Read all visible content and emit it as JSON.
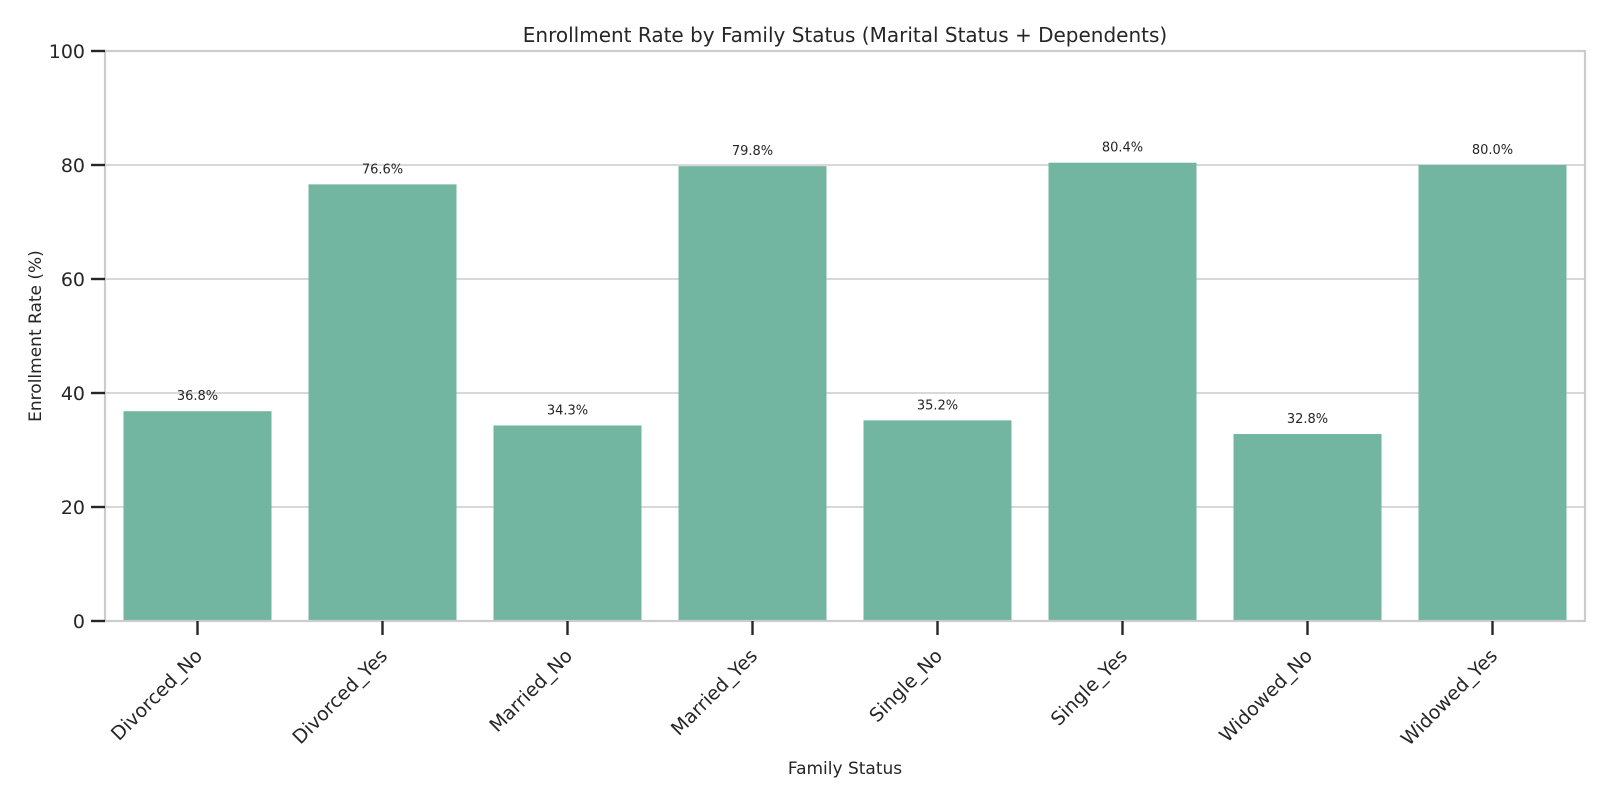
{
  "chart_data": {
    "type": "bar",
    "title": "Enrollment Rate by Family Status (Marital Status + Dependents)",
    "xlabel": "Family Status",
    "ylabel": "Enrollment Rate (%)",
    "categories": [
      "Divorced_No",
      "Divorced_Yes",
      "Married_No",
      "Married_Yes",
      "Single_No",
      "Single_Yes",
      "Widowed_No",
      "Widowed_Yes"
    ],
    "values": [
      36.8,
      76.6,
      34.3,
      79.8,
      35.2,
      80.4,
      32.8,
      80.0
    ],
    "value_labels": [
      "36.8%",
      "76.6%",
      "34.3%",
      "79.8%",
      "35.2%",
      "80.4%",
      "32.8%",
      "80.0%"
    ],
    "ylim": [
      0,
      100
    ],
    "yticks": [
      0,
      20,
      40,
      60,
      80,
      100
    ],
    "grid": true,
    "bar_color": "#72b5a0",
    "grid_color": "#cccccc",
    "text_color": "#262626"
  }
}
